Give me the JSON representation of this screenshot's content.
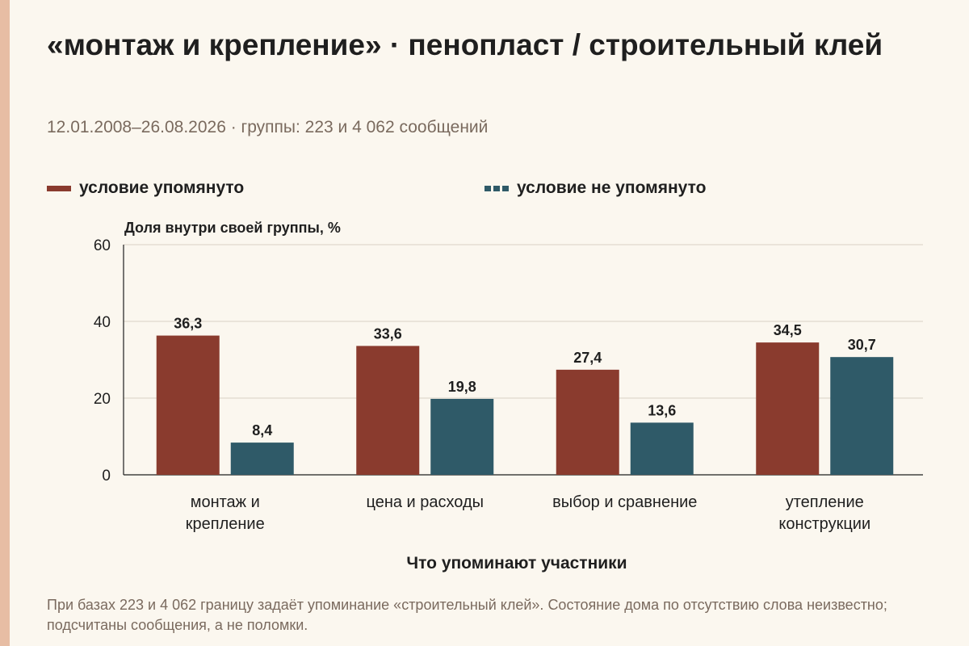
{
  "title": "«монтаж и крепление» · пенопласт / строительный клей",
  "subtitle": "12.01.2008–26.08.2026 · группы: 223 и 4 062 сообщений",
  "footnote": "При базах 223 и 4 062 границу задаёт упоминание «строительный клей». Состояние дома по отсутствию слова неизвестно; подсчитаны сообщения, а не поломки.",
  "colors": {
    "background": "#fbf7ef",
    "accent_bar": "#e7bda4",
    "series_mentioned": "#8a3b2e",
    "series_not_mentioned": "#2f5a68",
    "grid": "#d9d2c6"
  },
  "chart_data": {
    "type": "bar",
    "ylabel": "Доля внутри своей группы, %",
    "xlabel": "Что упоминают участники",
    "ylim": [
      0,
      60
    ],
    "yticks": [
      0,
      20,
      40,
      60
    ],
    "grid": true,
    "legend_position": "top",
    "categories": [
      [
        "монтаж и",
        "крепление"
      ],
      [
        "цена и расходы"
      ],
      [
        "выбор и сравнение"
      ],
      [
        "утепление",
        "конструкции"
      ]
    ],
    "value_labels": [
      [
        "36,3",
        "33,6",
        "27,4",
        "34,5"
      ],
      [
        "8,4",
        "19,8",
        "13,6",
        "30,7"
      ]
    ],
    "series": [
      {
        "name": "условие упомянуто",
        "values": [
          36.3,
          33.6,
          27.4,
          34.5
        ]
      },
      {
        "name": "условие не упомянуто",
        "values": [
          8.4,
          19.8,
          13.6,
          30.7
        ]
      }
    ]
  }
}
